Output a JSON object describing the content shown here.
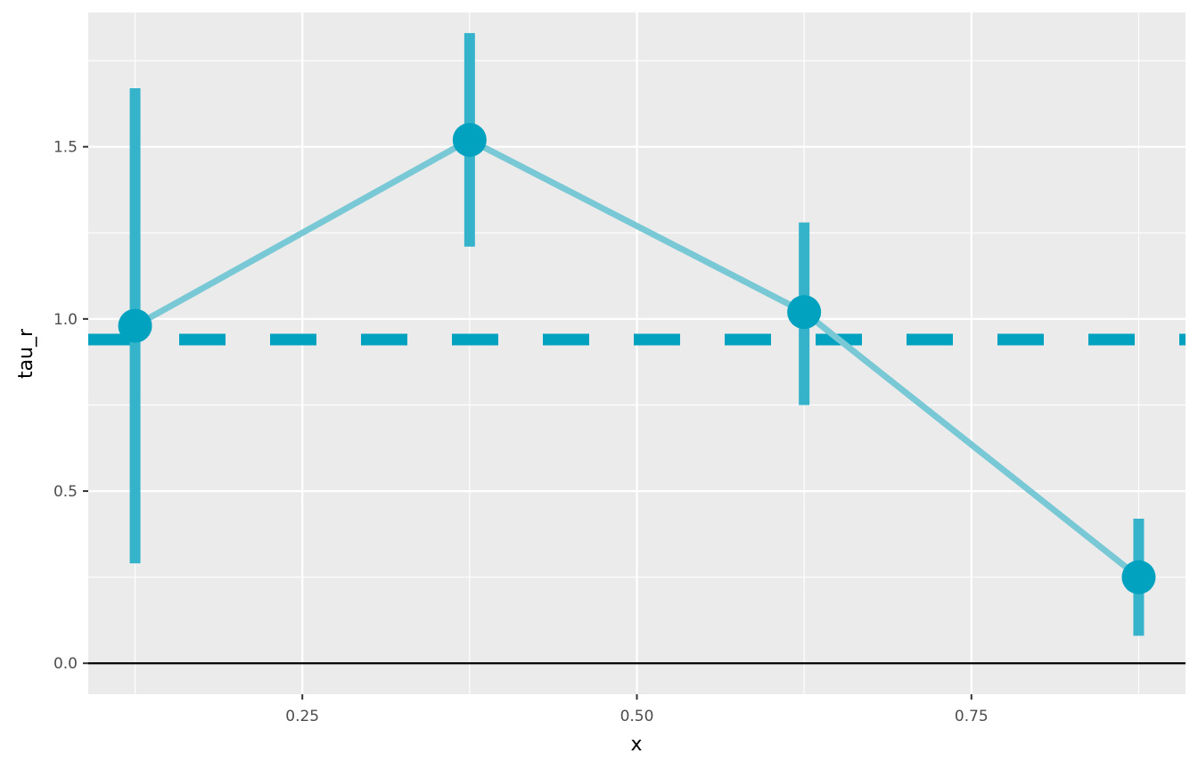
{
  "chart_data": {
    "type": "line",
    "xlabel": "x",
    "ylabel": "tau_r",
    "xlim": [
      0.09,
      0.91
    ],
    "ylim": [
      -0.09,
      1.89
    ],
    "x_ticks": [
      {
        "value": 0.25,
        "label": "0.25"
      },
      {
        "value": 0.5,
        "label": "0.50"
      },
      {
        "value": 0.75,
        "label": "0.75"
      }
    ],
    "y_ticks": [
      {
        "value": 0.0,
        "label": "0.0"
      },
      {
        "value": 0.5,
        "label": "0.5"
      },
      {
        "value": 1.0,
        "label": "1.0"
      },
      {
        "value": 1.5,
        "label": "1.5"
      }
    ],
    "grid": true,
    "legend": "none",
    "series": [
      {
        "x": [
          0.125,
          0.375,
          0.625,
          0.875
        ],
        "y": [
          0.98,
          1.52,
          1.02,
          0.25
        ],
        "lower": [
          0.29,
          1.21,
          0.75,
          0.08
        ],
        "upper": [
          1.67,
          1.83,
          1.28,
          0.42
        ]
      }
    ],
    "reference_lines": [
      {
        "orientation": "horizontal",
        "y": 0.94,
        "style": "dashed"
      },
      {
        "orientation": "horizontal",
        "y": 0.0,
        "style": "solid"
      }
    ],
    "colors": {
      "panel": "#ebebeb",
      "grid": "#ffffff",
      "point": "#00a2bf",
      "line": "#78c8d6",
      "errorbar": "#35b3ca",
      "dashed": "#00a2bf",
      "zero": "#000000"
    }
  }
}
